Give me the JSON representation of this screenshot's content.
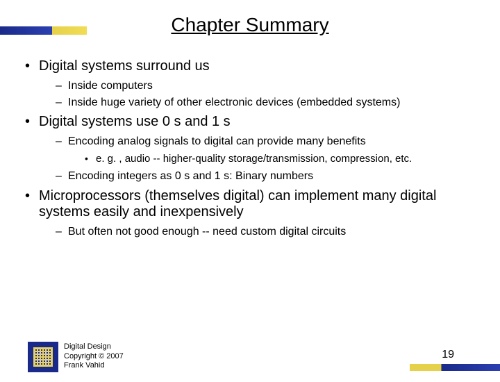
{
  "title": "Chapter Summary",
  "bullets": {
    "item1": {
      "text": "Digital systems surround us",
      "sub1": "Inside computers",
      "sub2": "Inside huge variety of other electronic devices (embedded systems)"
    },
    "item2": {
      "text": "Digital systems use 0 s and 1 s",
      "sub1": "Encoding analog signals to digital can provide many benefits",
      "sub1_detail": "e. g. , audio -- higher-quality storage/transmission, compression, etc.",
      "sub2": "Encoding integers as 0 s and 1 s: Binary numbers"
    },
    "item3": {
      "text": "Microprocessors (themselves digital) can implement many digital systems easily and inexpensively",
      "sub1": "But often not good enough -- need custom digital circuits"
    }
  },
  "footer": {
    "line1": "Digital Design",
    "line2": "Copyright © 2007",
    "line3": "Frank Vahid"
  },
  "page_number": "19",
  "colors": {
    "accent_blue": "#1a2a8a",
    "accent_yellow": "#e6d24a",
    "text": "#000000",
    "background": "#ffffff"
  }
}
